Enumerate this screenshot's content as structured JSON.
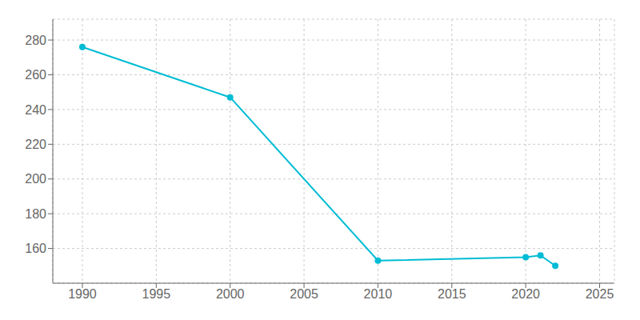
{
  "chart_data": {
    "type": "line",
    "x": [
      1990,
      2000,
      2010,
      2020,
      2021,
      2022
    ],
    "values": [
      276,
      247,
      153,
      155,
      156,
      150
    ],
    "color": "#00BCD4",
    "marker": "circle",
    "xlim": [
      1988,
      2026
    ],
    "ylim": [
      140,
      292
    ],
    "xticks": [
      1990,
      1995,
      2000,
      2005,
      2010,
      2015,
      2020,
      2025
    ],
    "yticks": [
      160,
      180,
      200,
      220,
      240,
      260,
      280
    ],
    "grid": true
  }
}
